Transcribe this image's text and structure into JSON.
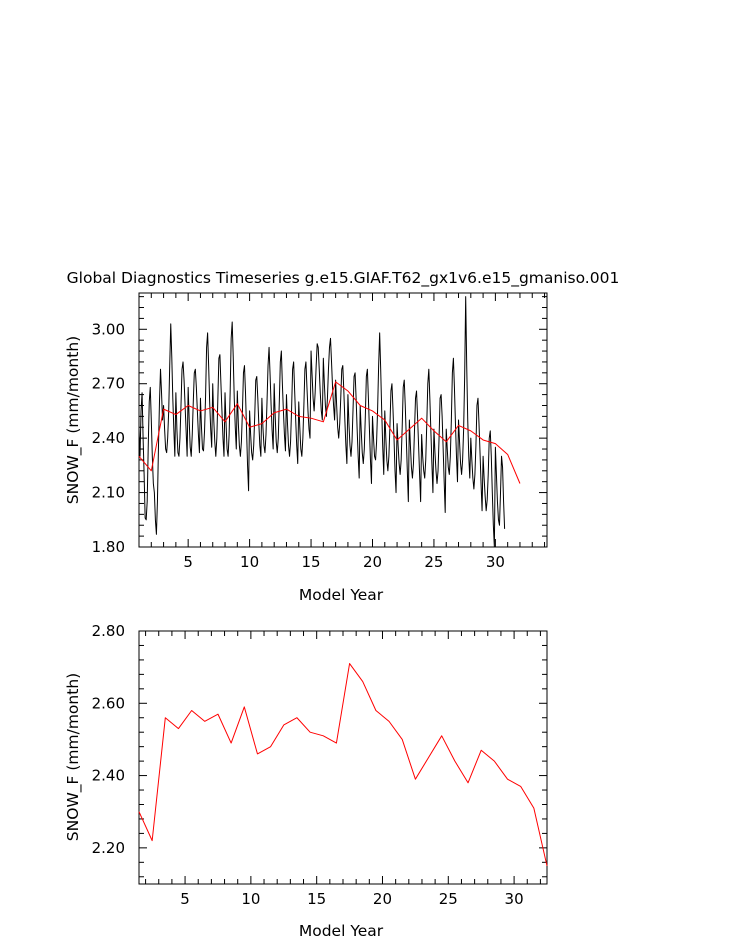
{
  "title": "Global Diagnostics Timeseries g.e15.GIAF.T62_gx1v6.e15_gmaniso.001",
  "chart_data": [
    {
      "type": "line",
      "xlabel": "Model Year",
      "ylabel": "SNOW_F (mm/month)",
      "xlim": [
        1,
        34.2
      ],
      "ylim": [
        1.8,
        3.2
      ],
      "xticks": [
        "5",
        "10",
        "15",
        "20",
        "25",
        "30"
      ],
      "yticks": [
        "1.80",
        "2.10",
        "2.40",
        "2.70",
        "3.00"
      ],
      "series": [
        {
          "color": "#000000",
          "style": "monthly",
          "x_start": 1.0,
          "x_step": 0.0833333,
          "values": [
            2.45,
            2.3,
            2.55,
            2.65,
            2.4,
            2.2,
            1.96,
            1.95,
            2.05,
            2.35,
            2.6,
            2.68,
            2.5,
            2.3,
            2.15,
            2.1,
            1.95,
            1.87,
            2.05,
            2.35,
            2.6,
            2.78,
            2.65,
            2.5,
            2.58,
            2.45,
            2.34,
            2.32,
            2.4,
            2.55,
            2.8,
            3.03,
            2.85,
            2.62,
            2.45,
            2.3,
            2.65,
            2.45,
            2.32,
            2.3,
            2.4,
            2.58,
            2.78,
            2.82,
            2.72,
            2.58,
            2.44,
            2.3,
            2.68,
            2.5,
            2.35,
            2.3,
            2.42,
            2.6,
            2.76,
            2.78,
            2.68,
            2.55,
            2.42,
            2.32,
            2.62,
            2.46,
            2.34,
            2.33,
            2.44,
            2.63,
            2.9,
            2.98,
            2.8,
            2.6,
            2.45,
            2.35,
            2.7,
            2.5,
            2.38,
            2.3,
            2.4,
            2.62,
            2.84,
            2.86,
            2.7,
            2.55,
            2.4,
            2.3,
            2.65,
            2.48,
            2.34,
            2.3,
            2.42,
            2.65,
            2.95,
            3.04,
            2.85,
            2.62,
            2.46,
            2.34,
            2.66,
            2.48,
            2.36,
            2.3,
            2.38,
            2.55,
            2.76,
            2.8,
            2.65,
            2.45,
            2.25,
            2.11,
            2.55,
            2.42,
            2.32,
            2.28,
            2.36,
            2.52,
            2.72,
            2.74,
            2.62,
            2.48,
            2.36,
            2.3,
            2.62,
            2.46,
            2.36,
            2.32,
            2.42,
            2.6,
            2.8,
            2.9,
            2.75,
            2.58,
            2.44,
            2.34,
            2.7,
            2.52,
            2.38,
            2.32,
            2.4,
            2.6,
            2.82,
            2.88,
            2.7,
            2.55,
            2.42,
            2.33,
            2.64,
            2.48,
            2.36,
            2.3,
            2.38,
            2.56,
            2.78,
            2.82,
            2.66,
            2.5,
            2.36,
            2.26,
            2.6,
            2.46,
            2.34,
            2.3,
            2.4,
            2.58,
            2.78,
            2.82,
            2.68,
            2.55,
            2.45,
            2.4,
            2.88,
            2.75,
            2.62,
            2.55,
            2.65,
            2.8,
            2.92,
            2.9,
            2.78,
            2.65,
            2.55,
            2.5,
            2.84,
            2.7,
            2.58,
            2.52,
            2.62,
            2.78,
            2.9,
            2.95,
            2.82,
            2.68,
            2.58,
            2.5,
            2.72,
            2.58,
            2.46,
            2.4,
            2.48,
            2.62,
            2.78,
            2.8,
            2.66,
            2.5,
            2.36,
            2.26,
            2.64,
            2.48,
            2.36,
            2.3,
            2.38,
            2.56,
            2.74,
            2.76,
            2.62,
            2.45,
            2.3,
            2.18,
            2.58,
            2.44,
            2.32,
            2.26,
            2.34,
            2.52,
            2.74,
            2.78,
            2.62,
            2.45,
            2.28,
            2.15,
            2.52,
            2.4,
            2.3,
            2.28,
            2.38,
            2.56,
            2.8,
            2.98,
            2.78,
            2.55,
            2.35,
            2.2,
            2.55,
            2.4,
            2.28,
            2.22,
            2.3,
            2.46,
            2.66,
            2.7,
            2.56,
            2.4,
            2.22,
            2.1,
            2.48,
            2.36,
            2.26,
            2.2,
            2.28,
            2.46,
            2.68,
            2.72,
            2.58,
            2.4,
            2.22,
            2.05,
            2.5,
            2.36,
            2.24,
            2.18,
            2.26,
            2.44,
            2.62,
            2.66,
            2.52,
            2.36,
            2.2,
            2.05,
            2.42,
            2.3,
            2.22,
            2.18,
            2.28,
            2.48,
            2.7,
            2.78,
            2.62,
            2.44,
            2.26,
            2.1,
            2.45,
            2.32,
            2.22,
            2.15,
            2.22,
            2.4,
            2.62,
            2.64,
            2.52,
            2.34,
            2.16,
            1.99,
            2.45,
            2.34,
            2.24,
            2.2,
            2.3,
            2.5,
            2.76,
            2.84,
            2.68,
            2.48,
            2.3,
            2.16,
            2.5,
            2.38,
            2.26,
            2.2,
            2.28,
            2.45,
            2.74,
            3.18,
            2.8,
            2.5,
            2.3,
            2.18,
            2.4,
            2.28,
            2.18,
            2.12,
            2.2,
            2.36,
            2.58,
            2.62,
            2.48,
            2.32,
            2.15,
            2.0,
            2.3,
            2.18,
            2.08,
            2.0,
            2.06,
            2.2,
            2.4,
            2.44,
            2.3,
            2.1,
            1.92,
            1.8,
            2.35,
            2.2,
            2.05,
            1.95,
            1.92,
            2.1,
            2.3,
            2.24,
            2.05,
            1.9
          ]
        },
        {
          "color": "#ff0000",
          "style": "annual",
          "x_start": 1.0,
          "x_step": 1.0,
          "values": [
            2.3,
            2.22,
            2.56,
            2.53,
            2.58,
            2.55,
            2.57,
            2.49,
            2.59,
            2.46,
            2.48,
            2.54,
            2.56,
            2.52,
            2.51,
            2.49,
            2.71,
            2.66,
            2.58,
            2.55,
            2.5,
            2.39,
            2.45,
            2.51,
            2.44,
            2.38,
            2.47,
            2.44,
            2.39,
            2.37,
            2.31,
            2.15
          ]
        }
      ]
    },
    {
      "type": "line",
      "xlabel": "Model Year",
      "ylabel": "SNOW_F (mm/month)",
      "xlim": [
        1.5,
        32.5
      ],
      "ylim": [
        2.1,
        2.8
      ],
      "xticks": [
        "5",
        "10",
        "15",
        "20",
        "25",
        "30"
      ],
      "yticks": [
        "2.20",
        "2.40",
        "2.60",
        "2.80"
      ],
      "series": [
        {
          "color": "#ff0000",
          "style": "annual",
          "x_start": 1.5,
          "x_step": 1.0,
          "values": [
            2.3,
            2.22,
            2.56,
            2.53,
            2.58,
            2.55,
            2.57,
            2.49,
            2.59,
            2.46,
            2.48,
            2.54,
            2.56,
            2.52,
            2.51,
            2.49,
            2.71,
            2.66,
            2.58,
            2.55,
            2.5,
            2.39,
            2.45,
            2.51,
            2.44,
            2.38,
            2.47,
            2.44,
            2.39,
            2.37,
            2.31,
            2.15
          ]
        }
      ]
    }
  ]
}
